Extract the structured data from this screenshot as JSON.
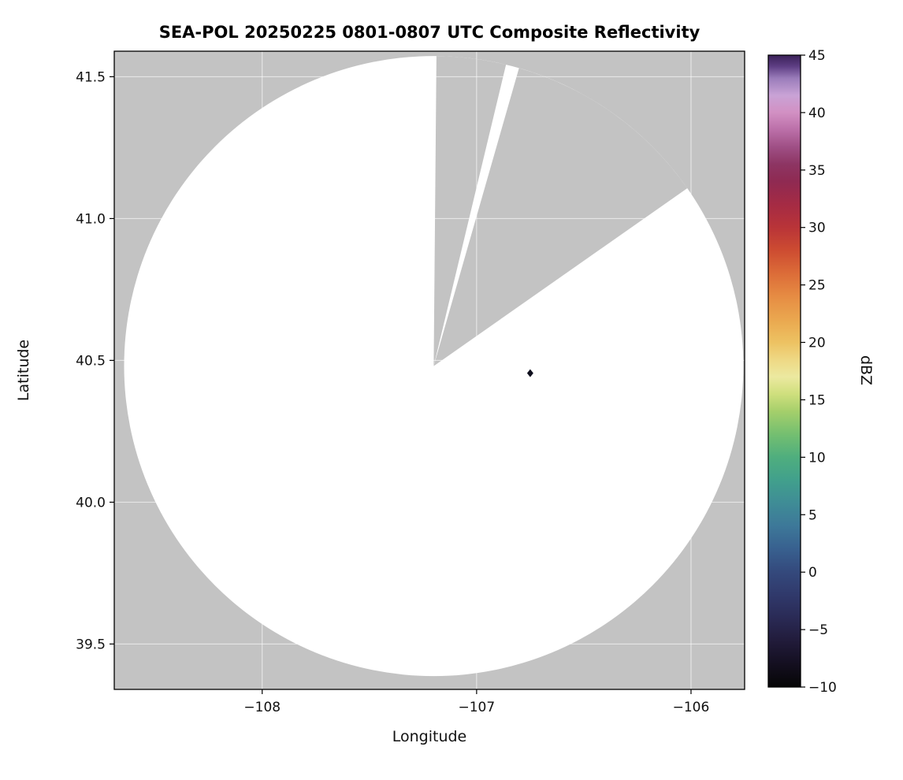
{
  "chart_data": {
    "type": "heatmap",
    "title": "SEA-POL 20250225 0801-0807 UTC Composite Reflectivity",
    "xlabel": "Longitude",
    "ylabel": "Latitude",
    "colorbar_label": "dBZ",
    "xlim": [
      -108.69,
      -105.75
    ],
    "ylim": [
      39.34,
      41.59
    ],
    "grid": true,
    "axes_bg": "#c3c3c3",
    "xticks": [
      {
        "value": -108,
        "label": "−108"
      },
      {
        "value": -107,
        "label": "−107"
      },
      {
        "value": -106,
        "label": "−106"
      }
    ],
    "yticks": [
      {
        "value": 39.5,
        "label": "39.5"
      },
      {
        "value": 40.0,
        "label": "40.0"
      },
      {
        "value": 40.5,
        "label": "40.5"
      },
      {
        "value": 41.0,
        "label": "41.0"
      },
      {
        "value": 41.5,
        "label": "41.5"
      }
    ],
    "coverage": {
      "center_lon": -107.2,
      "center_lat": 40.48,
      "radius_lon_deg": 1.444,
      "radius_lat_deg": 1.093,
      "fill": "#ffffff"
    },
    "blocked_sectors": [
      {
        "start_az": 0.5,
        "end_az": 13.5
      },
      {
        "start_az": 16.0,
        "end_az": 55.0
      }
    ],
    "echoes": [
      {
        "lon": -106.75,
        "lat": 40.455,
        "color": "#10101e"
      }
    ],
    "colorbar": {
      "min": -10,
      "max": 45,
      "ticks": [
        {
          "value": 45,
          "label": "45"
        },
        {
          "value": 40,
          "label": "40"
        },
        {
          "value": 35,
          "label": "35"
        },
        {
          "value": 30,
          "label": "30"
        },
        {
          "value": 25,
          "label": "25"
        },
        {
          "value": 20,
          "label": "20"
        },
        {
          "value": 15,
          "label": "15"
        },
        {
          "value": 10,
          "label": "10"
        },
        {
          "value": 5,
          "label": "5"
        },
        {
          "value": 0,
          "label": "0"
        },
        {
          "value": -5,
          "label": "−5"
        },
        {
          "value": -10,
          "label": "−10"
        }
      ],
      "stops": [
        {
          "value": -10,
          "color": "#060606"
        },
        {
          "value": -8,
          "color": "#140f20"
        },
        {
          "value": -6,
          "color": "#211b3a"
        },
        {
          "value": -4,
          "color": "#2a2a55"
        },
        {
          "value": -2,
          "color": "#30396b"
        },
        {
          "value": 0,
          "color": "#34497c"
        },
        {
          "value": 2,
          "color": "#38608f"
        },
        {
          "value": 4,
          "color": "#3d7899"
        },
        {
          "value": 6,
          "color": "#3f8c96"
        },
        {
          "value": 8,
          "color": "#41a08c"
        },
        {
          "value": 10,
          "color": "#4fae7e"
        },
        {
          "value": 12,
          "color": "#74bf70"
        },
        {
          "value": 14,
          "color": "#a5cf6b"
        },
        {
          "value": 15.5,
          "color": "#cfdf7d"
        },
        {
          "value": 17,
          "color": "#ece9a0"
        },
        {
          "value": 18.5,
          "color": "#eed884"
        },
        {
          "value": 20,
          "color": "#edc262"
        },
        {
          "value": 22,
          "color": "#eaa74f"
        },
        {
          "value": 24,
          "color": "#e68c43"
        },
        {
          "value": 26,
          "color": "#dc6c38"
        },
        {
          "value": 28,
          "color": "#cd4c31"
        },
        {
          "value": 30,
          "color": "#b93438"
        },
        {
          "value": 32,
          "color": "#a52b44"
        },
        {
          "value": 34,
          "color": "#8f2a52"
        },
        {
          "value": 35.5,
          "color": "#8d3563"
        },
        {
          "value": 37,
          "color": "#9f4f85"
        },
        {
          "value": 38.5,
          "color": "#bb6fa8"
        },
        {
          "value": 40,
          "color": "#d290c3"
        },
        {
          "value": 41.5,
          "color": "#c9a3d6"
        },
        {
          "value": 43,
          "color": "#9a7cba"
        },
        {
          "value": 44,
          "color": "#5f3f85"
        },
        {
          "value": 45,
          "color": "#3a2158"
        }
      ]
    }
  }
}
